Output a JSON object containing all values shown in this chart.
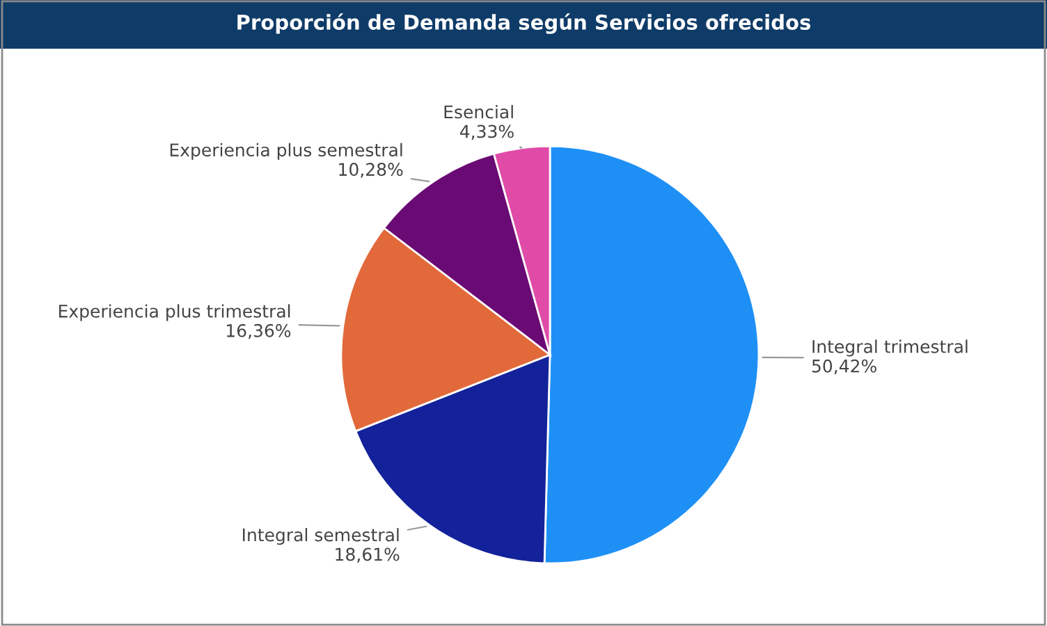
{
  "chart_data": {
    "type": "pie",
    "title": "Proporción de Demanda según Servicios ofrecidos",
    "categories": [
      "Integral trimestral",
      "Integral semestral",
      "Experiencia plus trimestral",
      "Experiencia plus semestral",
      "Esencial"
    ],
    "values": [
      50.42,
      18.61,
      16.36,
      10.28,
      4.33
    ],
    "value_labels": [
      "50,42%",
      "18,61%",
      "16,36%",
      "10,28%",
      "4,33%"
    ],
    "colors": [
      "#1e90f5",
      "#13229a",
      "#e2693a",
      "#6a0a74",
      "#e04ba8"
    ]
  }
}
